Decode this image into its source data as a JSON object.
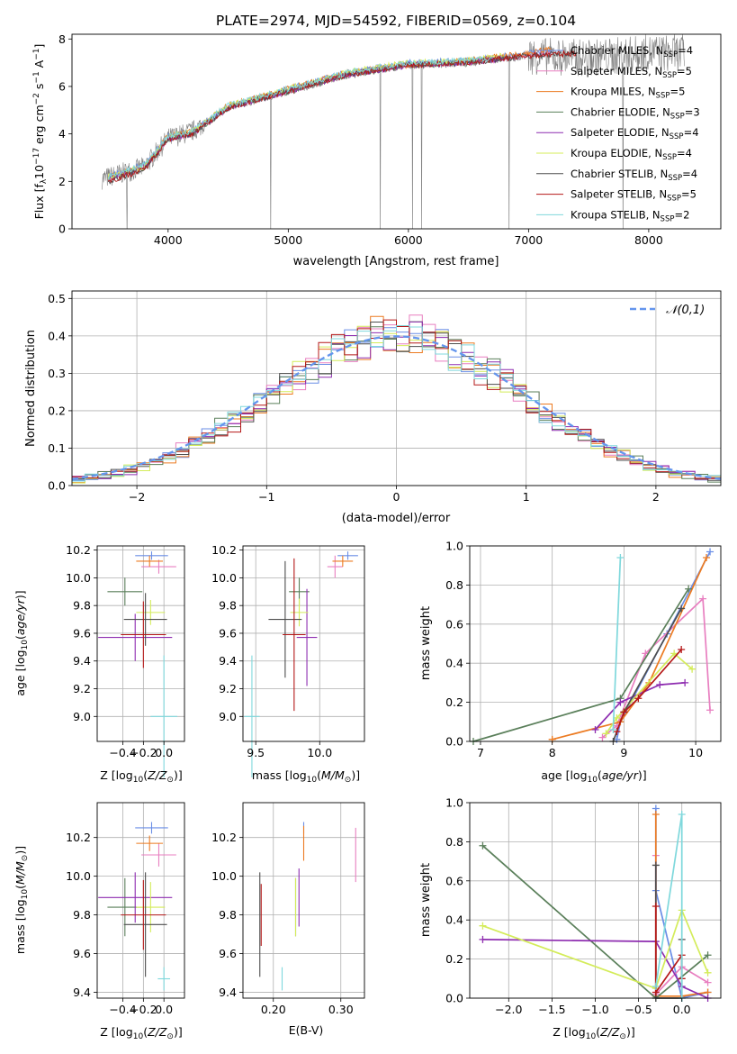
{
  "figure": {
    "title": "PLATE=2974, MJD=54592, FIBERID=0569, z=0.104"
  },
  "colors": {
    "chabrier_miles": "#6a8ee6",
    "salpeter_miles": "#e87fc0",
    "kroupa_miles": "#ec7b22",
    "chabrier_elodie": "#5a7f5a",
    "salpeter_elodie": "#8e2db0",
    "kroupa_elodie": "#d4ec5a",
    "chabrier_stelib": "#4d4d4d",
    "salpeter_stelib": "#b51818",
    "kroupa_stelib": "#7fd8dc",
    "data": "#808080",
    "normal": "#6495ED"
  },
  "chart_data": [
    {
      "type": "line",
      "title": "PLATE=2974, MJD=54592, FIBERID=0569, z=0.104",
      "xlabel": "wavelength [Angstrom, rest frame]",
      "ylabel": "Flux [f_λ 10^-17 erg cm^-2 s^-1 A^-1]",
      "xlim": [
        3200,
        8600
      ],
      "ylim": [
        0,
        8.2
      ],
      "xticks": [
        4000,
        5000,
        6000,
        7000,
        8000
      ],
      "yticks": [
        0,
        2,
        4,
        6,
        8
      ],
      "legend_position": "top-right",
      "series": [
        {
          "name": "Chabrier MILES, N_SSP=4",
          "key": "chabrier_miles",
          "x": [
            3500,
            3800,
            4000,
            4200,
            4500,
            5000,
            5500,
            6000,
            6500,
            7000,
            7200
          ],
          "y": [
            2.2,
            2.7,
            3.9,
            4.1,
            5.2,
            5.9,
            6.6,
            7.0,
            7.1,
            7.4,
            7.5
          ]
        },
        {
          "name": "Salpeter MILES, N_SSP=5",
          "key": "salpeter_miles",
          "x": [
            3500,
            3800,
            4000,
            4200,
            4500,
            5000,
            5500,
            6000,
            6500,
            7000,
            7200
          ],
          "y": [
            2.1,
            2.6,
            3.8,
            4.0,
            5.1,
            5.8,
            6.5,
            6.9,
            7.0,
            7.3,
            7.4
          ]
        },
        {
          "name": "Kroupa MILES, N_SSP=5",
          "key": "kroupa_miles",
          "x": [
            3500,
            3800,
            4000,
            4200,
            4500,
            5000,
            5500,
            6000,
            6500,
            7000,
            7200
          ],
          "y": [
            2.2,
            2.6,
            3.9,
            4.1,
            5.2,
            5.9,
            6.6,
            6.9,
            7.1,
            7.4,
            7.6
          ]
        },
        {
          "name": "Chabrier ELODIE, N_SSP=3",
          "key": "chabrier_elodie",
          "x": [
            3500,
            3800,
            4000,
            4200,
            4500,
            5000,
            5500,
            6000,
            6500,
            6800
          ],
          "y": [
            2.1,
            2.6,
            3.8,
            4.0,
            5.1,
            5.8,
            6.5,
            6.9,
            7.0,
            7.2
          ]
        },
        {
          "name": "Salpeter ELODIE, N_SSP=4",
          "key": "salpeter_elodie",
          "x": [
            3500,
            3800,
            4000,
            4200,
            4500,
            5000,
            5500,
            6000,
            6500,
            6800
          ],
          "y": [
            2.1,
            2.6,
            3.8,
            4.0,
            5.1,
            5.8,
            6.5,
            6.9,
            7.0,
            7.2
          ]
        },
        {
          "name": "Kroupa ELODIE, N_SSP=4",
          "key": "kroupa_elodie",
          "x": [
            3500,
            3800,
            4000,
            4200,
            4500,
            5000,
            5500,
            6000,
            6500,
            6800
          ],
          "y": [
            2.2,
            2.6,
            3.9,
            4.1,
            5.2,
            5.9,
            6.6,
            7.0,
            7.1,
            7.3
          ]
        },
        {
          "name": "Chabrier STELIB, N_SSP=4",
          "key": "chabrier_stelib",
          "x": [
            3500,
            3800,
            4000,
            4200,
            4500,
            5000,
            5500,
            6000,
            6500,
            7000,
            7400
          ],
          "y": [
            2.0,
            2.5,
            3.8,
            4.0,
            5.1,
            5.8,
            6.5,
            6.9,
            7.0,
            7.3,
            7.4
          ]
        },
        {
          "name": "Salpeter STELIB, N_SSP=5",
          "key": "salpeter_stelib",
          "x": [
            3500,
            3800,
            4000,
            4200,
            4500,
            5000,
            5500,
            6000,
            6500,
            7000,
            7400
          ],
          "y": [
            2.0,
            2.5,
            3.8,
            4.0,
            5.1,
            5.8,
            6.5,
            6.9,
            7.0,
            7.3,
            7.4
          ]
        },
        {
          "name": "Kroupa STELIB, N_SSP=2",
          "key": "kroupa_stelib",
          "x": [
            3500,
            3800,
            4000,
            4200,
            4500,
            5000,
            5500,
            6000,
            6500,
            6700
          ],
          "y": [
            2.2,
            2.7,
            3.9,
            4.1,
            5.2,
            5.9,
            6.6,
            7.0,
            7.1,
            7.2
          ]
        }
      ],
      "data_series": {
        "key": "data",
        "x": [
          3450,
          3800,
          4000,
          4200,
          4500,
          5000,
          5500,
          6000,
          6500,
          7000,
          7500,
          8000,
          8300
        ],
        "y": [
          2.1,
          2.6,
          3.8,
          4.1,
          5.1,
          5.8,
          6.5,
          6.9,
          7.0,
          7.3,
          7.2,
          7.4,
          7.4
        ]
      }
    },
    {
      "type": "line",
      "xlabel": "(data-model)/error",
      "ylabel": "Normed distribution",
      "xlim": [
        -2.5,
        2.5
      ],
      "ylim": [
        0,
        0.52
      ],
      "xticks": [
        -2,
        -1,
        0,
        1,
        2
      ],
      "yticks": [
        0.0,
        0.1,
        0.2,
        0.3,
        0.4,
        0.5
      ],
      "legend": "𝒩(0,1)",
      "legend_position": "top-right",
      "histogram_bin_width": 0.1,
      "histogram_x_from": -2.5,
      "histogram_keys": [
        "chabrier_miles",
        "salpeter_miles",
        "kroupa_miles",
        "chabrier_elodie",
        "salpeter_elodie",
        "kroupa_elodie",
        "chabrier_stelib",
        "salpeter_stelib",
        "kroupa_stelib"
      ]
    },
    {
      "type": "scatter",
      "xlabel": "Z [log10(Z/Z☉)]",
      "ylabel": "age  [log10(age/yr)]",
      "xlim": [
        -0.65,
        0.2
      ],
      "ylim": [
        8.82,
        10.23
      ],
      "xticks": [
        -0.4,
        -0.2,
        0.0
      ],
      "yticks": [
        9.0,
        9.2,
        9.4,
        9.6,
        9.8,
        10.0,
        10.2
      ],
      "points": [
        {
          "key": "chabrier_miles",
          "x": -0.12,
          "y": 10.16,
          "xerr": 0.16,
          "yerr": 0.03
        },
        {
          "key": "salpeter_miles",
          "x": -0.05,
          "y": 10.08,
          "xerr": 0.17,
          "yerr": 0.05
        },
        {
          "key": "kroupa_miles",
          "x": -0.14,
          "y": 10.12,
          "xerr": 0.13,
          "yerr": 0.04
        },
        {
          "key": "chabrier_elodie",
          "x": -0.38,
          "y": 9.9,
          "xerr": 0.17,
          "yerr": 0.1
        },
        {
          "key": "salpeter_elodie",
          "x": -0.28,
          "y": 9.57,
          "xerr": 0.36,
          "yerr": 0.17
        },
        {
          "key": "kroupa_elodie",
          "x": -0.13,
          "y": 9.75,
          "xerr": 0.14,
          "yerr": 0.09
        },
        {
          "key": "chabrier_stelib",
          "x": -0.18,
          "y": 9.7,
          "xerr": 0.21,
          "yerr": 0.19
        },
        {
          "key": "salpeter_stelib",
          "x": -0.2,
          "y": 9.59,
          "xerr": 0.22,
          "yerr": 0.24
        },
        {
          "key": "kroupa_stelib",
          "x": 0.0,
          "y": 9.0,
          "xerr": 0.13,
          "yerr": 0.44
        }
      ]
    },
    {
      "type": "scatter",
      "xlabel": "mass [log10(M/M☉)]",
      "xlim": [
        9.4,
        10.35
      ],
      "ylim": [
        8.82,
        10.23
      ],
      "xticks": [
        9.5,
        10.0
      ],
      "yticks": [
        9.0,
        9.2,
        9.4,
        9.6,
        9.8,
        10.0,
        10.2
      ],
      "points": [
        {
          "key": "chabrier_miles",
          "x": 10.22,
          "y": 10.16,
          "xerr": 0.08,
          "yerr": 0.03
        },
        {
          "key": "salpeter_miles",
          "x": 10.12,
          "y": 10.08,
          "xerr": 0.06,
          "yerr": 0.08
        },
        {
          "key": "kroupa_miles",
          "x": 10.18,
          "y": 10.12,
          "xerr": 0.08,
          "yerr": 0.04
        },
        {
          "key": "chabrier_elodie",
          "x": 9.84,
          "y": 9.9,
          "xerr": 0.08,
          "yerr": 0.1
        },
        {
          "key": "salpeter_elodie",
          "x": 9.9,
          "y": 9.57,
          "xerr": 0.08,
          "yerr": 0.35
        },
        {
          "key": "kroupa_elodie",
          "x": 9.84,
          "y": 9.75,
          "xerr": 0.07,
          "yerr": 0.1
        },
        {
          "key": "chabrier_stelib",
          "x": 9.73,
          "y": 9.7,
          "xerr": 0.13,
          "yerr": 0.42
        },
        {
          "key": "salpeter_stelib",
          "x": 9.8,
          "y": 9.59,
          "xerr": 0.09,
          "yerr": 0.55
        },
        {
          "key": "kroupa_stelib",
          "x": 9.47,
          "y": 9.0,
          "xerr": 0.06,
          "yerr": 0.44
        }
      ]
    },
    {
      "type": "line",
      "xlabel": "age  [log10(age/yr)]",
      "ylabel": "mass weight",
      "xlim": [
        6.85,
        10.35
      ],
      "ylim": [
        0,
        1.0
      ],
      "xticks": [
        7,
        8,
        9,
        10
      ],
      "yticks": [
        0.0,
        0.2,
        0.4,
        0.6,
        0.8,
        1.0
      ],
      "series": [
        {
          "key": "chabrier_miles",
          "x": [
            8.9,
            8.95,
            9.6,
            10.2
          ],
          "y": [
            0.01,
            0.1,
            0.55,
            0.97
          ]
        },
        {
          "key": "salpeter_miles",
          "x": [
            8.7,
            8.9,
            9.3,
            10.1,
            10.2
          ],
          "y": [
            0.02,
            0.08,
            0.45,
            0.73,
            0.16
          ]
        },
        {
          "key": "kroupa_miles",
          "x": [
            8.0,
            8.95,
            9.35,
            10.15
          ],
          "y": [
            0.01,
            0.1,
            0.3,
            0.94
          ]
        },
        {
          "key": "chabrier_elodie",
          "x": [
            6.9,
            8.95,
            9.9
          ],
          "y": [
            0.0,
            0.22,
            0.78
          ]
        },
        {
          "key": "salpeter_elodie",
          "x": [
            8.6,
            8.95,
            9.5,
            9.85
          ],
          "y": [
            0.06,
            0.2,
            0.29,
            0.3
          ]
        },
        {
          "key": "kroupa_elodie",
          "x": [
            8.75,
            8.9,
            9.7,
            9.95
          ],
          "y": [
            0.04,
            0.12,
            0.45,
            0.37
          ]
        },
        {
          "key": "chabrier_stelib",
          "x": [
            8.85,
            9.0,
            9.8
          ],
          "y": [
            0.0,
            0.15,
            0.68
          ]
        },
        {
          "key": "salpeter_stelib",
          "x": [
            8.9,
            9.0,
            9.2,
            9.8
          ],
          "y": [
            0.05,
            0.15,
            0.22,
            0.47
          ]
        },
        {
          "key": "kroupa_stelib",
          "x": [
            8.85,
            8.95
          ],
          "y": [
            0.06,
            0.94
          ]
        }
      ]
    },
    {
      "type": "scatter",
      "xlabel": "Z [log10(Z/Z☉)]",
      "ylabel": "mass [log10(M/M☉)]",
      "xlim": [
        -0.65,
        0.2
      ],
      "ylim": [
        9.37,
        10.38
      ],
      "xticks": [
        -0.4,
        -0.2,
        0.0
      ],
      "yticks": [
        9.4,
        9.6,
        9.8,
        10.0,
        10.2
      ],
      "points": [
        {
          "key": "chabrier_miles",
          "x": -0.12,
          "y": 10.25,
          "xerr": 0.16,
          "yerr": 0.03
        },
        {
          "key": "salpeter_miles",
          "x": -0.05,
          "y": 10.11,
          "xerr": 0.17,
          "yerr": 0.06
        },
        {
          "key": "kroupa_miles",
          "x": -0.14,
          "y": 10.17,
          "xerr": 0.13,
          "yerr": 0.04
        },
        {
          "key": "chabrier_elodie",
          "x": -0.38,
          "y": 9.84,
          "xerr": 0.17,
          "yerr": 0.15
        },
        {
          "key": "salpeter_elodie",
          "x": -0.28,
          "y": 9.89,
          "xerr": 0.36,
          "yerr": 0.13
        },
        {
          "key": "kroupa_elodie",
          "x": -0.13,
          "y": 9.84,
          "xerr": 0.14,
          "yerr": 0.13
        },
        {
          "key": "chabrier_stelib",
          "x": -0.18,
          "y": 9.75,
          "xerr": 0.21,
          "yerr": 0.27
        },
        {
          "key": "salpeter_stelib",
          "x": -0.2,
          "y": 9.8,
          "xerr": 0.22,
          "yerr": 0.18
        },
        {
          "key": "kroupa_stelib",
          "x": 0.0,
          "y": 9.47,
          "xerr": 0.06,
          "yerr": 0.06
        }
      ]
    },
    {
      "type": "scatter",
      "xlabel": "E(B-V)",
      "xlim": [
        0.155,
        0.335
      ],
      "ylim": [
        9.37,
        10.38
      ],
      "xticks": [
        0.2,
        0.3
      ],
      "yticks": [
        9.4,
        9.6,
        9.8,
        10.0,
        10.2
      ],
      "points": [
        {
          "key": "chabrier_miles",
          "x": 0.245,
          "y": 10.25,
          "xerr": 0,
          "yerr": 0.03
        },
        {
          "key": "salpeter_miles",
          "x": 0.322,
          "y": 10.11,
          "xerr": 0,
          "yerr": 0.14
        },
        {
          "key": "kroupa_miles",
          "x": 0.245,
          "y": 10.17,
          "xerr": 0,
          "yerr": 0.09
        },
        {
          "key": "chabrier_elodie",
          "x": 0.233,
          "y": 9.84,
          "xerr": 0,
          "yerr": 0.15
        },
        {
          "key": "salpeter_elodie",
          "x": 0.238,
          "y": 9.89,
          "xerr": 0,
          "yerr": 0.15
        },
        {
          "key": "kroupa_elodie",
          "x": 0.233,
          "y": 9.84,
          "xerr": 0,
          "yerr": 0.15
        },
        {
          "key": "chabrier_stelib",
          "x": 0.18,
          "y": 9.75,
          "xerr": 0,
          "yerr": 0.27
        },
        {
          "key": "salpeter_stelib",
          "x": 0.182,
          "y": 9.8,
          "xerr": 0,
          "yerr": 0.16
        },
        {
          "key": "kroupa_stelib",
          "x": 0.213,
          "y": 9.47,
          "xerr": 0,
          "yerr": 0.06
        }
      ]
    },
    {
      "type": "line",
      "xlabel": "Z [log10(Z/Z☉)]",
      "ylabel": "mass weight",
      "xlim": [
        -2.45,
        0.45
      ],
      "ylim": [
        0,
        1.0
      ],
      "xticks": [
        -2.0,
        -1.5,
        -1.0,
        -0.5,
        0.0
      ],
      "yticks": [
        0.0,
        0.2,
        0.4,
        0.6,
        0.8,
        1.0
      ],
      "series": [
        {
          "key": "chabrier_miles",
          "x": [
            -0.3,
            -0.3,
            0.0,
            0.3
          ],
          "y": [
            0.97,
            0.55,
            0.0,
            0.03
          ]
        },
        {
          "key": "salpeter_miles",
          "x": [
            -0.3,
            -0.3,
            0.0,
            0.3
          ],
          "y": [
            0.73,
            0.02,
            0.16,
            0.08
          ]
        },
        {
          "key": "kroupa_miles",
          "x": [
            -0.3,
            -0.3,
            0.0,
            0.3
          ],
          "y": [
            0.94,
            0.01,
            0.01,
            0.03
          ]
        },
        {
          "key": "chabrier_elodie",
          "x": [
            -2.3,
            -0.3,
            0.3
          ],
          "y": [
            0.78,
            0.0,
            0.22
          ]
        },
        {
          "key": "salpeter_elodie",
          "x": [
            -2.3,
            -0.3,
            0.0,
            0.3
          ],
          "y": [
            0.3,
            0.29,
            0.06,
            0.0
          ]
        },
        {
          "key": "kroupa_elodie",
          "x": [
            -2.3,
            -0.3,
            0.0,
            0.3
          ],
          "y": [
            0.37,
            0.05,
            0.45,
            0.13
          ]
        },
        {
          "key": "chabrier_stelib",
          "x": [
            -0.3,
            -0.3,
            0.0,
            0.0
          ],
          "y": [
            0.68,
            0.0,
            0.0,
            0.3
          ]
        },
        {
          "key": "salpeter_stelib",
          "x": [
            -0.3,
            -0.3,
            0.0,
            0.0
          ],
          "y": [
            0.47,
            0.03,
            0.22,
            0.1
          ]
        },
        {
          "key": "kroupa_stelib",
          "x": [
            -0.3,
            0.0,
            0.0
          ],
          "y": [
            0.06,
            0.94,
            0.0
          ]
        }
      ]
    }
  ]
}
